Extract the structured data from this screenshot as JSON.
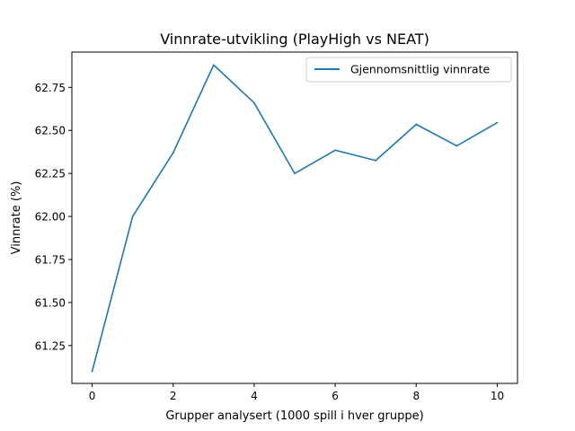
{
  "chart_data": {
    "type": "line",
    "title": "Vinnrate-utvikling (PlayHigh vs NEAT)",
    "xlabel": "Grupper analysert (1000 spill i hver gruppe)",
    "ylabel": "Vinnrate (%)",
    "x": [
      0,
      1,
      2,
      3,
      4,
      5,
      6,
      7,
      8,
      9,
      10
    ],
    "series": [
      {
        "name": "Gjennomsnittlig vinnrate",
        "values": [
          61.1,
          62.0,
          62.37,
          62.88,
          62.66,
          62.25,
          62.385,
          62.325,
          62.535,
          62.41,
          62.545
        ]
      }
    ],
    "xlim": [
      -0.5,
      10.5
    ],
    "ylim": [
      61.03,
      62.955
    ],
    "xticks": [
      0,
      2,
      4,
      6,
      8,
      10
    ],
    "xtick_labels": [
      "0",
      "2",
      "4",
      "6",
      "8",
      "10"
    ],
    "yticks": [
      61.25,
      61.5,
      61.75,
      62.0,
      62.25,
      62.5,
      62.75
    ],
    "ytick_labels": [
      "61.25",
      "61.50",
      "61.75",
      "62.00",
      "62.25",
      "62.50",
      "62.75"
    ],
    "grid": false,
    "legend_position": "upper right",
    "colors": {
      "line": "#1f77b4",
      "axes": "#000000",
      "legend_border": "#cccccc"
    }
  }
}
